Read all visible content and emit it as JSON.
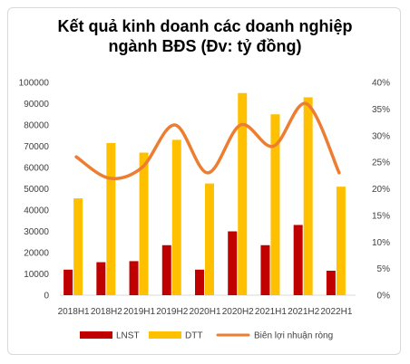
{
  "chart_data": {
    "type": "bar",
    "title_line1": "Kết quả kinh doanh các doanh nghiệp",
    "title_line2": "ngành BĐS (Đv: tỷ đồng)",
    "categories": [
      "2018H1",
      "2018H2",
      "2019H1",
      "2019H2",
      "2020H1",
      "2020H2",
      "2021H1",
      "2021H2",
      "2022H1"
    ],
    "series": [
      {
        "name": "LNST",
        "type": "bar",
        "color": "#c00000",
        "values": [
          12000,
          15500,
          16000,
          23500,
          12000,
          30000,
          23500,
          33000,
          11500
        ]
      },
      {
        "name": "DTT",
        "type": "bar",
        "color": "#ffc000",
        "values": [
          45500,
          71500,
          67000,
          73000,
          52500,
          95000,
          85000,
          93000,
          51000
        ]
      },
      {
        "name": "Biên lợi nhuận ròng",
        "type": "line",
        "axis": "right",
        "color": "#ed7d31",
        "values": [
          0.26,
          0.22,
          0.24,
          0.32,
          0.23,
          0.32,
          0.28,
          0.36,
          0.23
        ]
      }
    ],
    "ylim": [
      0,
      100000
    ],
    "y_ticks": [
      "0",
      "10000",
      "20000",
      "30000",
      "40000",
      "50000",
      "60000",
      "70000",
      "80000",
      "90000",
      "100000"
    ],
    "y2lim": [
      0,
      0.4
    ],
    "y2_ticks": [
      "0%",
      "5%",
      "10%",
      "15%",
      "20%",
      "25%",
      "30%",
      "35%",
      "40%"
    ],
    "grid": false,
    "legend_position": "bottom"
  }
}
